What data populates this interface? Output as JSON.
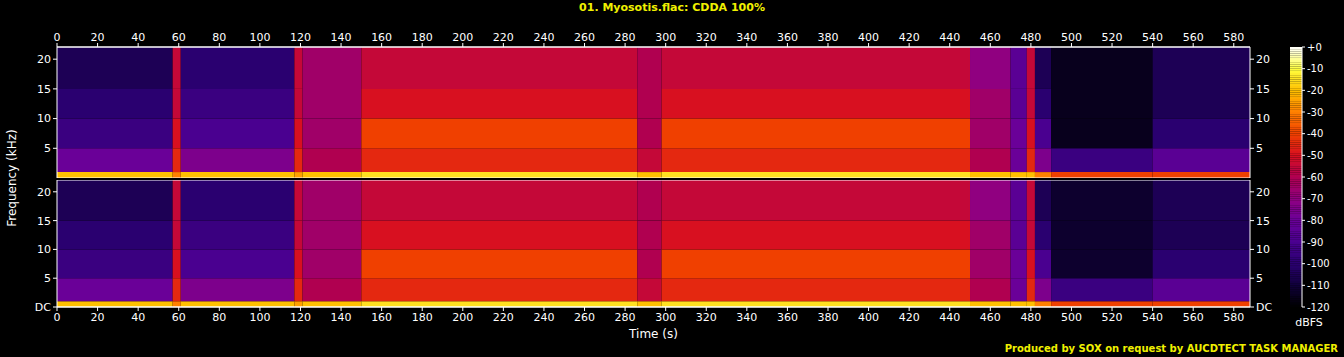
{
  "chart_data": {
    "type": "heatmap",
    "title": "01. Myosotis.flac: CDDA 100%",
    "x_label": "Time (s)",
    "y_label": "Frequency (kHz)",
    "footer": "Produced by SOX on request by AUCDTECT TASK MANAGER",
    "xlim": [
      0,
      588
    ],
    "xticks": [
      0,
      20,
      40,
      60,
      80,
      100,
      120,
      140,
      160,
      180,
      200,
      220,
      240,
      260,
      280,
      300,
      320,
      340,
      360,
      380,
      400,
      420,
      440,
      460,
      480,
      500,
      520,
      540,
      560,
      580
    ],
    "ylim": [
      0,
      22.05
    ],
    "time_bins": [
      0,
      57,
      61,
      117,
      121,
      150,
      286,
      298,
      450,
      470,
      478,
      482,
      490,
      540,
      588
    ],
    "frequency_bins": [
      0,
      1,
      5,
      10,
      15,
      22.05
    ],
    "panels": [
      {
        "yticks": [
          5,
          10,
          15,
          20
        ],
        "cells": [
          [
            -20,
            -80,
            -95,
            -100,
            -105
          ],
          [
            -30,
            -45,
            -50,
            -55,
            -55
          ],
          [
            -20,
            -75,
            -90,
            -95,
            -100
          ],
          [
            -25,
            -45,
            -50,
            -55,
            -55
          ],
          [
            -20,
            -60,
            -65,
            -65,
            -65
          ],
          [
            -15,
            -45,
            -40,
            -50,
            -55
          ],
          [
            -20,
            -55,
            -60,
            -60,
            -60
          ],
          [
            -15,
            -45,
            -40,
            -50,
            -55
          ],
          [
            -20,
            -60,
            -65,
            -65,
            -70
          ],
          [
            -20,
            -80,
            -80,
            -85,
            -85
          ],
          [
            -20,
            -45,
            -50,
            -55,
            -55
          ],
          [
            -30,
            -75,
            -90,
            -100,
            -105
          ],
          [
            -40,
            -95,
            -115,
            -115,
            -115
          ],
          [
            -40,
            -85,
            -100,
            -105,
            -105
          ]
        ]
      },
      {
        "yticks": [
          {
            "value": 0,
            "label": "DC"
          },
          5,
          10,
          15,
          20
        ],
        "cells": [
          [
            -20,
            -80,
            -95,
            -100,
            -105
          ],
          [
            -30,
            -45,
            -50,
            -55,
            -55
          ],
          [
            -20,
            -75,
            -90,
            -95,
            -100
          ],
          [
            -25,
            -45,
            -50,
            -55,
            -55
          ],
          [
            -20,
            -60,
            -65,
            -65,
            -65
          ],
          [
            -15,
            -45,
            -40,
            -50,
            -55
          ],
          [
            -20,
            -55,
            -60,
            -60,
            -60
          ],
          [
            -15,
            -45,
            -40,
            -50,
            -55
          ],
          [
            -20,
            -60,
            -65,
            -65,
            -70
          ],
          [
            -20,
            -80,
            -80,
            -85,
            -85
          ],
          [
            -20,
            -45,
            -50,
            -55,
            -55
          ],
          [
            -30,
            -75,
            -90,
            -100,
            -105
          ],
          [
            -40,
            -95,
            -112,
            -112,
            -112
          ],
          [
            -40,
            -85,
            -100,
            -105,
            -105
          ]
        ]
      }
    ],
    "colorbar": {
      "range": [
        -120,
        0
      ],
      "ticks": [
        {
          "value": 0,
          "label": "+0"
        },
        -10,
        -20,
        -30,
        -40,
        -50,
        -60,
        -70,
        -80,
        -90,
        -100,
        -110,
        -120
      ],
      "label": "dBFS"
    }
  }
}
